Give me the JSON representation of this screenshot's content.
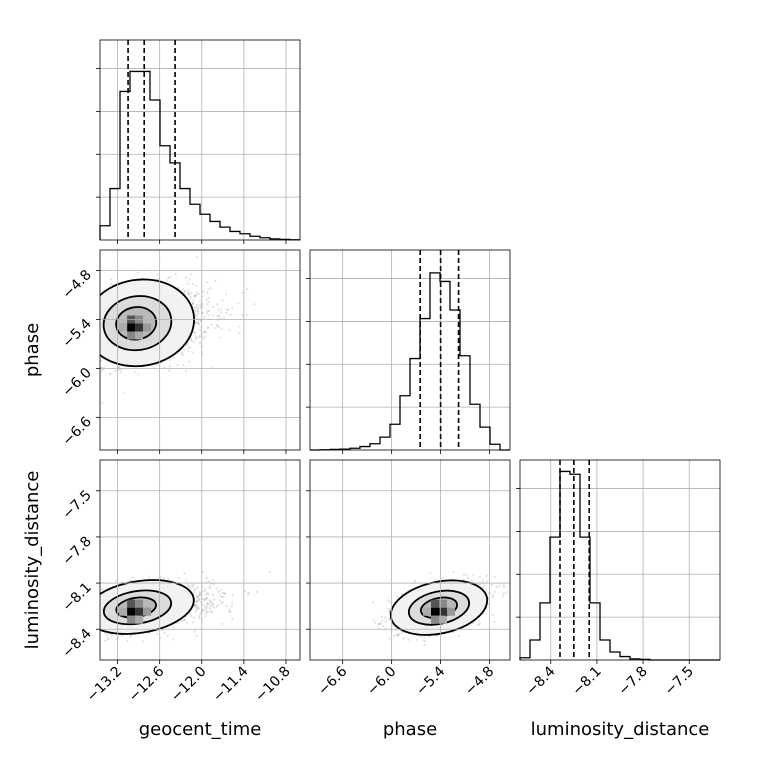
{
  "chart_data": {
    "type": "corner",
    "parameters": [
      {
        "name": "geocent_time",
        "range": [
          -13.45,
          -10.6
        ],
        "ticks": [
          -13.2,
          -12.6,
          -12.0,
          -11.4,
          -10.8
        ],
        "tick_labels": [
          "−13.2",
          "−12.6",
          "−12.0",
          "−11.4",
          "−10.8"
        ],
        "quantiles": [
          -13.05,
          -12.82,
          -12.38
        ],
        "hist": [
          0.05,
          0.18,
          0.52,
          0.59,
          0.59,
          0.49,
          0.33,
          0.27,
          0.18,
          0.125,
          0.09,
          0.065,
          0.045,
          0.03,
          0.022,
          0.013,
          0.008,
          0.004,
          0.002,
          0.001
        ]
      },
      {
        "name": "phase",
        "range": [
          -7.0,
          -4.55
        ],
        "ticks": [
          -6.6,
          -6.0,
          -5.4,
          -4.8
        ],
        "tick_labels": [
          "−6.6",
          "−6.0",
          "−5.4",
          "−4.8"
        ],
        "quantiles": [
          -5.65,
          -5.4,
          -5.18
        ],
        "hist": [
          0.0,
          0.001,
          0.002,
          0.003,
          0.006,
          0.012,
          0.022,
          0.045,
          0.09,
          0.19,
          0.32,
          0.46,
          0.62,
          0.59,
          0.49,
          0.33,
          0.16,
          0.08,
          0.02,
          0.0
        ]
      },
      {
        "name": "luminosity_distance",
        "range": [
          -8.6,
          -7.3
        ],
        "ticks": [
          -8.4,
          -8.1,
          -7.8,
          -7.5
        ],
        "tick_labels": [
          "−8.4",
          "−8.1",
          "−7.8",
          "−7.5"
        ],
        "quantiles": [
          -8.34,
          -8.25,
          -8.15
        ],
        "hist": [
          0.008,
          0.07,
          0.2,
          0.43,
          0.66,
          0.65,
          0.43,
          0.2,
          0.07,
          0.028,
          0.012,
          0.004,
          0.002,
          0.0,
          0.0,
          0.0,
          0.0,
          0.0,
          0.0,
          0.0
        ]
      }
    ],
    "pairs": [
      {
        "x": "geocent_time",
        "y": "phase",
        "center": [
          -12.95,
          -5.45
        ],
        "spread": [
          0.3,
          0.22
        ],
        "corr": 0.2,
        "skew_x": 0.35
      },
      {
        "x": "geocent_time",
        "y": "luminosity_distance",
        "center": [
          -12.95,
          -8.26
        ],
        "spread": [
          0.3,
          0.07
        ],
        "corr": 0.35,
        "skew_x": 0.35
      },
      {
        "x": "phase",
        "y": "luminosity_distance",
        "center": [
          -5.42,
          -8.26
        ],
        "spread": [
          0.25,
          0.07
        ],
        "corr": 0.45,
        "skew_x": 0.0
      }
    ],
    "grid": true
  }
}
